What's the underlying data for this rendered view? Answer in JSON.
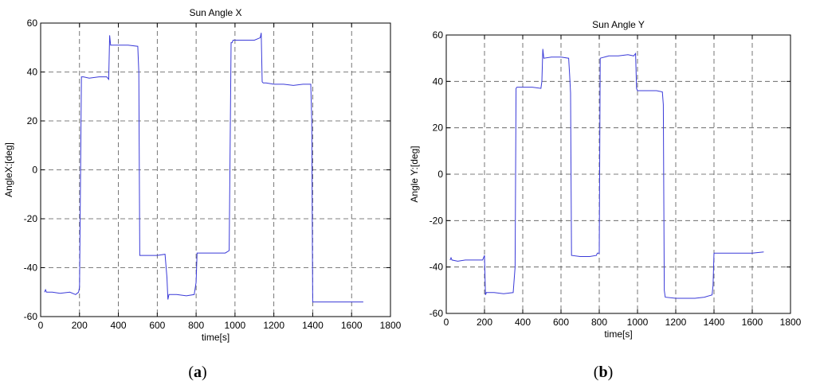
{
  "chart_data": [
    {
      "type": "line",
      "title": "Sun Angle X",
      "xlabel": "time[s]",
      "ylabel": "AngleX:[deg]",
      "caption": {
        "open": "(",
        "letter": "a",
        "close": ")"
      },
      "xlim": [
        0,
        1800
      ],
      "ylim": [
        -60,
        60
      ],
      "xticks": [
        0,
        200,
        400,
        600,
        800,
        1000,
        1200,
        1400,
        1600,
        1800
      ],
      "yticks": [
        -60,
        -40,
        -20,
        0,
        20,
        40,
        60
      ],
      "grid": true,
      "color": "#3a3ad8",
      "series": [
        {
          "x": [
            20,
            25,
            30,
            60,
            100,
            150,
            180,
            195,
            200,
            210,
            220,
            250,
            300,
            340,
            350,
            355,
            360,
            365,
            400,
            450,
            500,
            505,
            510,
            520,
            600,
            640,
            650,
            655,
            660,
            700,
            750,
            790,
            800,
            805,
            810,
            850,
            900,
            950,
            970,
            980,
            985,
            990,
            1000,
            1050,
            1100,
            1130,
            1135,
            1140,
            1145,
            1160,
            1200,
            1250,
            1300,
            1350,
            1390,
            1395,
            1400,
            1410,
            1500,
            1600,
            1660
          ],
          "y": [
            -50,
            -49,
            -50,
            -50,
            -50.5,
            -50,
            -51,
            -50,
            -48,
            38,
            38,
            37.5,
            38,
            38,
            37,
            55,
            51,
            51,
            51,
            51,
            50.5,
            40,
            -35,
            -35,
            -35,
            -34.5,
            -44,
            -53,
            -51,
            -51,
            -51.5,
            -51,
            -46,
            -34,
            -34,
            -34,
            -34,
            -34,
            -33,
            52,
            52,
            53,
            53,
            53,
            53,
            54,
            56,
            36,
            35.5,
            35.5,
            35,
            35,
            34.5,
            35,
            35,
            20,
            -54,
            -54,
            -54,
            -54,
            -54
          ]
        }
      ]
    },
    {
      "type": "line",
      "title": "Sun Angle Y",
      "xlabel": "time[s]",
      "ylabel": "Angle Y:[deg]",
      "caption": {
        "open": "(",
        "letter": "b",
        "close": ")"
      },
      "xlim": [
        0,
        1800
      ],
      "ylim": [
        -60,
        60
      ],
      "xticks": [
        0,
        200,
        400,
        600,
        800,
        1000,
        1200,
        1400,
        1600,
        1800
      ],
      "yticks": [
        -60,
        -40,
        -20,
        0,
        20,
        40,
        60
      ],
      "grid": true,
      "color": "#3a3ad8",
      "series": [
        {
          "x": [
            20,
            25,
            30,
            60,
            100,
            150,
            190,
            200,
            205,
            210,
            250,
            300,
            350,
            360,
            365,
            370,
            400,
            450,
            495,
            500,
            505,
            510,
            550,
            600,
            640,
            645,
            650,
            655,
            700,
            750,
            785,
            790,
            800,
            805,
            850,
            900,
            950,
            980,
            990,
            995,
            1000,
            1050,
            1100,
            1130,
            1135,
            1140,
            1145,
            1200,
            1250,
            1300,
            1350,
            1390,
            1395,
            1400,
            1450,
            1500,
            1550,
            1600,
            1660
          ],
          "y": [
            -37,
            -36,
            -37,
            -37.5,
            -37,
            -37,
            -37,
            -35,
            -52,
            -51,
            -51,
            -51.5,
            -51,
            -40,
            37,
            37.5,
            37.5,
            37.5,
            37,
            40,
            54,
            50,
            50.5,
            50.5,
            50,
            43,
            35,
            -35,
            -35.5,
            -35.5,
            -35,
            -34,
            -34,
            50,
            51,
            51,
            51.5,
            51,
            52,
            37,
            36,
            36,
            36,
            35.5,
            30,
            -50,
            -53,
            -53.5,
            -53.5,
            -53.5,
            -53,
            -52,
            -48,
            -34,
            -34,
            -34,
            -34,
            -34,
            -33.5
          ]
        }
      ]
    }
  ]
}
